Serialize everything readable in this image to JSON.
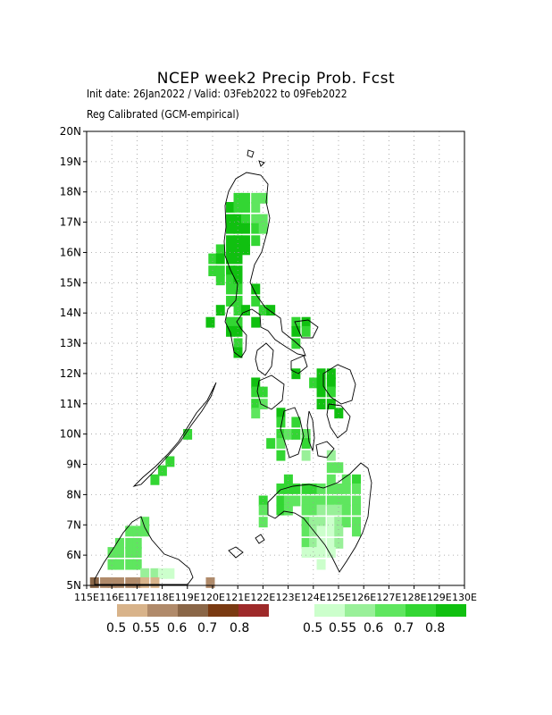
{
  "header": {
    "title": "NCEP week2 Precip Prob. Fcst",
    "line1": "Init date: 26Jan2022 / Valid: 03Feb2022 to 09Feb2022",
    "line2": "Reg Calibrated (GCM-empirical)"
  },
  "map": {
    "lon_range": [
      115,
      130
    ],
    "lat_range": [
      5,
      20
    ],
    "grid": true,
    "lat_labels": [
      "5N",
      "6N",
      "7N",
      "8N",
      "9N",
      "10N",
      "11N",
      "12N",
      "13N",
      "14N",
      "15N",
      "16N",
      "17N",
      "18N",
      "19N",
      "20N"
    ],
    "lon_labels": [
      "115E",
      "116E",
      "117E",
      "118E",
      "119E",
      "120E",
      "121E",
      "122E",
      "123E",
      "124E",
      "125E",
      "126E",
      "127E",
      "128E",
      "129E",
      "130E"
    ],
    "region_outline": "Philippines"
  },
  "legend": {
    "dry_colors": [
      "#d8b38a",
      "#b08a6a",
      "#8a6647",
      "#7a3a12",
      "#9e2a2a"
    ],
    "wet_colors": [
      "#ccffcc",
      "#99f099",
      "#5fe65f",
      "#33d633",
      "#10c010"
    ],
    "dry_labels": [
      "0.5",
      "0.55",
      "0.6",
      "0.7",
      "0.8"
    ],
    "wet_labels": [
      "0.5",
      "0.55",
      "0.6",
      "0.7",
      "0.8"
    ]
  },
  "cells": [
    {
      "lon": 121.0,
      "lat": 17.8,
      "v": 4
    },
    {
      "lon": 121.3,
      "lat": 17.8,
      "v": 4
    },
    {
      "lon": 121.7,
      "lat": 17.8,
      "v": 3
    },
    {
      "lon": 122.0,
      "lat": 17.8,
      "v": 3
    },
    {
      "lon": 120.7,
      "lat": 17.5,
      "v": 5
    },
    {
      "lon": 121.0,
      "lat": 17.5,
      "v": 4
    },
    {
      "lon": 121.3,
      "lat": 17.5,
      "v": 4
    },
    {
      "lon": 121.7,
      "lat": 17.5,
      "v": 3
    },
    {
      "lon": 120.7,
      "lat": 17.1,
      "v": 5
    },
    {
      "lon": 121.0,
      "lat": 17.1,
      "v": 5
    },
    {
      "lon": 121.3,
      "lat": 17.1,
      "v": 4
    },
    {
      "lon": 121.7,
      "lat": 17.1,
      "v": 3
    },
    {
      "lon": 122.0,
      "lat": 17.1,
      "v": 3
    },
    {
      "lon": 120.7,
      "lat": 16.8,
      "v": 5
    },
    {
      "lon": 121.0,
      "lat": 16.8,
      "v": 5
    },
    {
      "lon": 121.3,
      "lat": 16.8,
      "v": 5
    },
    {
      "lon": 121.7,
      "lat": 16.8,
      "v": 4
    },
    {
      "lon": 122.0,
      "lat": 16.8,
      "v": 3
    },
    {
      "lon": 120.7,
      "lat": 16.4,
      "v": 5
    },
    {
      "lon": 121.0,
      "lat": 16.4,
      "v": 5
    },
    {
      "lon": 121.3,
      "lat": 16.4,
      "v": 5
    },
    {
      "lon": 121.7,
      "lat": 16.4,
      "v": 4
    },
    {
      "lon": 120.3,
      "lat": 16.1,
      "v": 4
    },
    {
      "lon": 120.7,
      "lat": 16.1,
      "v": 5
    },
    {
      "lon": 121.0,
      "lat": 16.1,
      "v": 5
    },
    {
      "lon": 121.3,
      "lat": 16.1,
      "v": 5
    },
    {
      "lon": 120.0,
      "lat": 15.8,
      "v": 4
    },
    {
      "lon": 120.3,
      "lat": 15.8,
      "v": 5
    },
    {
      "lon": 120.7,
      "lat": 15.8,
      "v": 5
    },
    {
      "lon": 121.0,
      "lat": 15.8,
      "v": 5
    },
    {
      "lon": 120.0,
      "lat": 15.4,
      "v": 4
    },
    {
      "lon": 120.3,
      "lat": 15.4,
      "v": 4
    },
    {
      "lon": 120.7,
      "lat": 15.4,
      "v": 5
    },
    {
      "lon": 121.0,
      "lat": 15.4,
      "v": 5
    },
    {
      "lon": 120.3,
      "lat": 15.1,
      "v": 4
    },
    {
      "lon": 120.7,
      "lat": 15.1,
      "v": 4
    },
    {
      "lon": 121.0,
      "lat": 15.1,
      "v": 5
    },
    {
      "lon": 120.7,
      "lat": 14.8,
      "v": 4
    },
    {
      "lon": 121.0,
      "lat": 14.8,
      "v": 4
    },
    {
      "lon": 121.7,
      "lat": 14.8,
      "v": 5
    },
    {
      "lon": 120.7,
      "lat": 14.4,
      "v": 4
    },
    {
      "lon": 121.0,
      "lat": 14.4,
      "v": 4
    },
    {
      "lon": 121.7,
      "lat": 14.4,
      "v": 4
    },
    {
      "lon": 120.3,
      "lat": 14.1,
      "v": 5
    },
    {
      "lon": 121.0,
      "lat": 14.1,
      "v": 4
    },
    {
      "lon": 121.3,
      "lat": 14.1,
      "v": 5
    },
    {
      "lon": 122.0,
      "lat": 14.1,
      "v": 4
    },
    {
      "lon": 122.3,
      "lat": 14.1,
      "v": 5
    },
    {
      "lon": 119.9,
      "lat": 13.7,
      "v": 5
    },
    {
      "lon": 120.7,
      "lat": 13.7,
      "v": 4
    },
    {
      "lon": 121.0,
      "lat": 13.7,
      "v": 4
    },
    {
      "lon": 121.7,
      "lat": 13.7,
      "v": 5
    },
    {
      "lon": 123.3,
      "lat": 13.7,
      "v": 4
    },
    {
      "lon": 123.7,
      "lat": 13.7,
      "v": 5
    },
    {
      "lon": 120.7,
      "lat": 13.4,
      "v": 5
    },
    {
      "lon": 121.0,
      "lat": 13.4,
      "v": 5
    },
    {
      "lon": 123.3,
      "lat": 13.4,
      "v": 5
    },
    {
      "lon": 123.7,
      "lat": 13.4,
      "v": 4
    },
    {
      "lon": 121.0,
      "lat": 13.0,
      "v": 4
    },
    {
      "lon": 123.3,
      "lat": 13.0,
      "v": 4
    },
    {
      "lon": 121.0,
      "lat": 12.7,
      "v": 5
    },
    {
      "lon": 123.3,
      "lat": 12.0,
      "v": 5
    },
    {
      "lon": 124.3,
      "lat": 12.0,
      "v": 5
    },
    {
      "lon": 124.7,
      "lat": 12.0,
      "v": 5
    },
    {
      "lon": 121.7,
      "lat": 11.7,
      "v": 5
    },
    {
      "lon": 124.0,
      "lat": 11.7,
      "v": 4
    },
    {
      "lon": 124.3,
      "lat": 11.7,
      "v": 5
    },
    {
      "lon": 124.7,
      "lat": 11.7,
      "v": 5
    },
    {
      "lon": 121.7,
      "lat": 11.4,
      "v": 4
    },
    {
      "lon": 122.0,
      "lat": 11.4,
      "v": 4
    },
    {
      "lon": 124.3,
      "lat": 11.4,
      "v": 5
    },
    {
      "lon": 124.7,
      "lat": 11.4,
      "v": 4
    },
    {
      "lon": 121.7,
      "lat": 11.0,
      "v": 4
    },
    {
      "lon": 122.0,
      "lat": 11.0,
      "v": 3
    },
    {
      "lon": 124.3,
      "lat": 11.0,
      "v": 5
    },
    {
      "lon": 124.7,
      "lat": 11.0,
      "v": 5
    },
    {
      "lon": 121.7,
      "lat": 10.7,
      "v": 3
    },
    {
      "lon": 122.7,
      "lat": 10.7,
      "v": 5
    },
    {
      "lon": 125.0,
      "lat": 10.7,
      "v": 5
    },
    {
      "lon": 122.7,
      "lat": 10.4,
      "v": 4
    },
    {
      "lon": 123.3,
      "lat": 10.4,
      "v": 4
    },
    {
      "lon": 122.7,
      "lat": 10.0,
      "v": 4
    },
    {
      "lon": 123.0,
      "lat": 10.0,
      "v": 3
    },
    {
      "lon": 123.3,
      "lat": 10.0,
      "v": 4
    },
    {
      "lon": 123.7,
      "lat": 10.0,
      "v": 3
    },
    {
      "lon": 122.3,
      "lat": 9.7,
      "v": 4
    },
    {
      "lon": 122.7,
      "lat": 9.7,
      "v": 3
    },
    {
      "lon": 123.7,
      "lat": 9.7,
      "v": 4
    },
    {
      "lon": 122.7,
      "lat": 9.3,
      "v": 4
    },
    {
      "lon": 123.7,
      "lat": 9.3,
      "v": 2
    },
    {
      "lon": 124.7,
      "lat": 9.3,
      "v": 2
    },
    {
      "lon": 124.7,
      "lat": 8.9,
      "v": 3
    },
    {
      "lon": 125.0,
      "lat": 8.9,
      "v": 3
    },
    {
      "lon": 123.0,
      "lat": 8.5,
      "v": 4
    },
    {
      "lon": 124.7,
      "lat": 8.5,
      "v": 3
    },
    {
      "lon": 125.3,
      "lat": 8.5,
      "v": 3
    },
    {
      "lon": 125.7,
      "lat": 8.5,
      "v": 4
    },
    {
      "lon": 122.7,
      "lat": 8.2,
      "v": 4
    },
    {
      "lon": 123.0,
      "lat": 8.2,
      "v": 4
    },
    {
      "lon": 123.3,
      "lat": 8.2,
      "v": 4
    },
    {
      "lon": 123.7,
      "lat": 8.2,
      "v": 4
    },
    {
      "lon": 124.0,
      "lat": 8.2,
      "v": 4
    },
    {
      "lon": 124.3,
      "lat": 8.2,
      "v": 3
    },
    {
      "lon": 124.7,
      "lat": 8.2,
      "v": 3
    },
    {
      "lon": 125.0,
      "lat": 8.2,
      "v": 3
    },
    {
      "lon": 125.3,
      "lat": 8.2,
      "v": 3
    },
    {
      "lon": 125.7,
      "lat": 8.2,
      "v": 3
    },
    {
      "lon": 122.0,
      "lat": 7.8,
      "v": 4
    },
    {
      "lon": 122.7,
      "lat": 7.8,
      "v": 4
    },
    {
      "lon": 123.0,
      "lat": 7.8,
      "v": 3
    },
    {
      "lon": 123.3,
      "lat": 7.8,
      "v": 3
    },
    {
      "lon": 123.7,
      "lat": 7.8,
      "v": 3
    },
    {
      "lon": 124.0,
      "lat": 7.8,
      "v": 3
    },
    {
      "lon": 124.3,
      "lat": 7.8,
      "v": 3
    },
    {
      "lon": 124.7,
      "lat": 7.8,
      "v": 3
    },
    {
      "lon": 125.0,
      "lat": 7.8,
      "v": 3
    },
    {
      "lon": 125.3,
      "lat": 7.8,
      "v": 3
    },
    {
      "lon": 125.7,
      "lat": 7.8,
      "v": 3
    },
    {
      "lon": 122.0,
      "lat": 7.5,
      "v": 3
    },
    {
      "lon": 122.7,
      "lat": 7.5,
      "v": 4
    },
    {
      "lon": 123.0,
      "lat": 7.5,
      "v": 3
    },
    {
      "lon": 123.7,
      "lat": 7.5,
      "v": 3
    },
    {
      "lon": 124.0,
      "lat": 7.5,
      "v": 3
    },
    {
      "lon": 124.3,
      "lat": 7.5,
      "v": 2
    },
    {
      "lon": 124.7,
      "lat": 7.5,
      "v": 2
    },
    {
      "lon": 125.0,
      "lat": 7.5,
      "v": 2
    },
    {
      "lon": 125.3,
      "lat": 7.5,
      "v": 3
    },
    {
      "lon": 125.7,
      "lat": 7.5,
      "v": 3
    },
    {
      "lon": 122.0,
      "lat": 7.1,
      "v": 3
    },
    {
      "lon": 123.7,
      "lat": 7.1,
      "v": 3
    },
    {
      "lon": 124.0,
      "lat": 7.1,
      "v": 2
    },
    {
      "lon": 124.3,
      "lat": 7.1,
      "v": 2
    },
    {
      "lon": 124.7,
      "lat": 7.1,
      "v": 1
    },
    {
      "lon": 125.0,
      "lat": 7.1,
      "v": 2
    },
    {
      "lon": 125.3,
      "lat": 7.1,
      "v": 3
    },
    {
      "lon": 125.7,
      "lat": 7.1,
      "v": 3
    },
    {
      "lon": 123.7,
      "lat": 6.8,
      "v": 3
    },
    {
      "lon": 124.0,
      "lat": 6.8,
      "v": 2
    },
    {
      "lon": 124.3,
      "lat": 6.8,
      "v": 1
    },
    {
      "lon": 124.7,
      "lat": 6.8,
      "v": 1
    },
    {
      "lon": 125.0,
      "lat": 6.8,
      "v": 2
    },
    {
      "lon": 125.7,
      "lat": 6.8,
      "v": 3
    },
    {
      "lon": 123.7,
      "lat": 6.4,
      "v": 3
    },
    {
      "lon": 124.0,
      "lat": 6.4,
      "v": 2
    },
    {
      "lon": 124.3,
      "lat": 6.4,
      "v": 1
    },
    {
      "lon": 124.7,
      "lat": 6.4,
      "v": 1
    },
    {
      "lon": 125.0,
      "lat": 6.4,
      "v": 2
    },
    {
      "lon": 123.7,
      "lat": 6.1,
      "v": 1
    },
    {
      "lon": 124.0,
      "lat": 6.1,
      "v": 1
    },
    {
      "lon": 124.3,
      "lat": 6.1,
      "v": 1
    },
    {
      "lon": 124.7,
      "lat": 6.1,
      "v": 1
    },
    {
      "lon": 124.3,
      "lat": 5.7,
      "v": 1
    },
    {
      "lon": 117.3,
      "lat": 7.1,
      "v": 3
    },
    {
      "lon": 116.7,
      "lat": 6.8,
      "v": 3
    },
    {
      "lon": 117.0,
      "lat": 6.8,
      "v": 3
    },
    {
      "lon": 117.3,
      "lat": 6.8,
      "v": 3
    },
    {
      "lon": 116.3,
      "lat": 6.4,
      "v": 3
    },
    {
      "lon": 116.7,
      "lat": 6.4,
      "v": 3
    },
    {
      "lon": 117.0,
      "lat": 6.4,
      "v": 3
    },
    {
      "lon": 116.0,
      "lat": 6.1,
      "v": 3
    },
    {
      "lon": 116.3,
      "lat": 6.1,
      "v": 3
    },
    {
      "lon": 116.7,
      "lat": 6.1,
      "v": 3
    },
    {
      "lon": 117.0,
      "lat": 6.1,
      "v": 3
    },
    {
      "lon": 116.0,
      "lat": 5.7,
      "v": 3
    },
    {
      "lon": 116.3,
      "lat": 5.7,
      "v": 3
    },
    {
      "lon": 116.7,
      "lat": 5.7,
      "v": 3
    },
    {
      "lon": 117.0,
      "lat": 5.7,
      "v": 3
    },
    {
      "lon": 117.3,
      "lat": 5.4,
      "v": 2
    },
    {
      "lon": 117.7,
      "lat": 5.4,
      "v": 2
    },
    {
      "lon": 118.0,
      "lat": 5.4,
      "v": 1
    },
    {
      "lon": 118.3,
      "lat": 5.4,
      "v": 1
    },
    {
      "lon": 118.3,
      "lat": 9.1,
      "v": 4
    },
    {
      "lon": 118.0,
      "lat": 8.8,
      "v": 4
    },
    {
      "lon": 117.7,
      "lat": 8.5,
      "v": 4
    },
    {
      "lon": 119.0,
      "lat": 10.0,
      "v": 4
    },
    {
      "lon": 115.3,
      "lat": 5.1,
      "v": -3
    },
    {
      "lon": 115.7,
      "lat": 5.1,
      "v": -2
    },
    {
      "lon": 116.0,
      "lat": 5.1,
      "v": -2
    },
    {
      "lon": 116.3,
      "lat": 5.1,
      "v": -2
    },
    {
      "lon": 116.7,
      "lat": 5.1,
      "v": -2
    },
    {
      "lon": 117.0,
      "lat": 5.1,
      "v": -2
    },
    {
      "lon": 117.3,
      "lat": 5.1,
      "v": -1
    },
    {
      "lon": 117.7,
      "lat": 5.1,
      "v": -1
    },
    {
      "lon": 119.9,
      "lat": 5.1,
      "v": -2
    }
  ]
}
